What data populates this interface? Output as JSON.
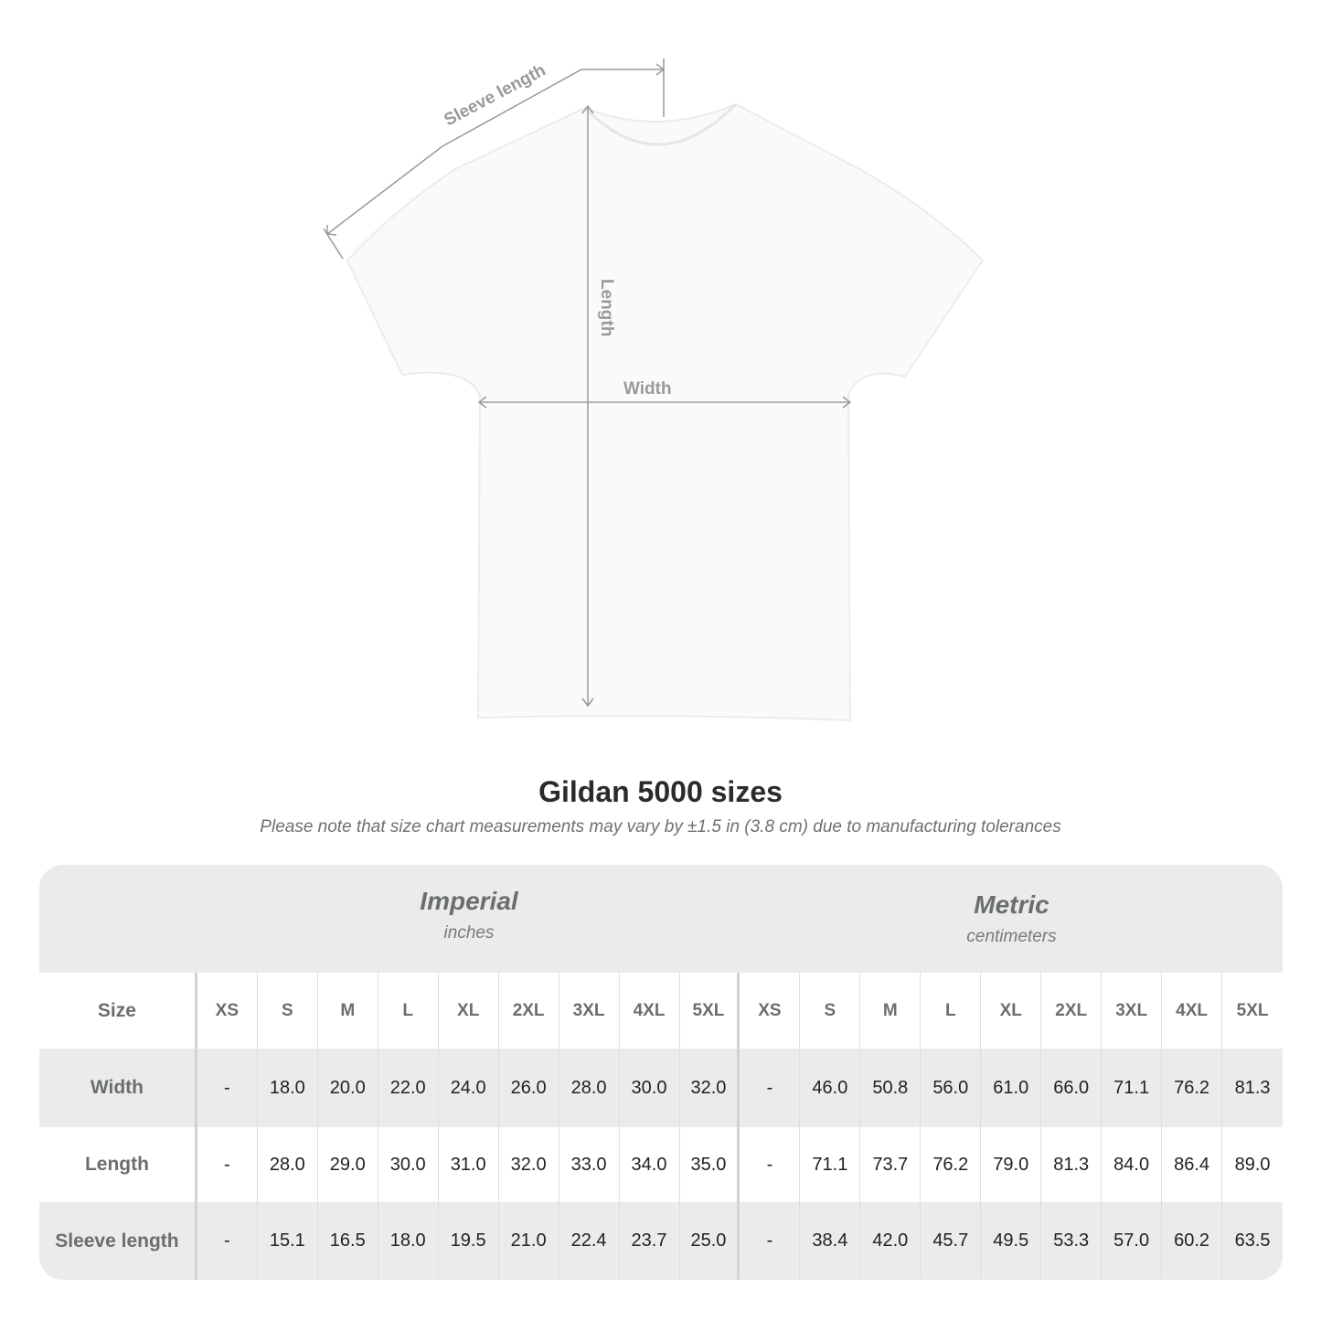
{
  "diagram": {
    "labels": {
      "sleeve": "Sleeve length",
      "length": "Length",
      "width": "Width"
    },
    "garment_color": "#ffffff",
    "line_color": "#999999"
  },
  "title": "Gildan 5000 sizes",
  "note": "Please note that size chart measurements may vary by ±1.5 in (3.8 cm) due to manufacturing tolerances",
  "table": {
    "imperial": {
      "system": "Imperial",
      "unit": "inches"
    },
    "metric": {
      "system": "Metric",
      "unit": "centimeters"
    },
    "size_label": "Size",
    "sizes": [
      "XS",
      "S",
      "M",
      "L",
      "XL",
      "2XL",
      "3XL",
      "4XL",
      "5XL"
    ],
    "rows": [
      {
        "label": "Width",
        "imperial": [
          "-",
          "18.0",
          "20.0",
          "22.0",
          "24.0",
          "26.0",
          "28.0",
          "30.0",
          "32.0"
        ],
        "metric": [
          "-",
          "46.0",
          "50.8",
          "56.0",
          "61.0",
          "66.0",
          "71.1",
          "76.2",
          "81.3"
        ]
      },
      {
        "label": "Length",
        "imperial": [
          "-",
          "28.0",
          "29.0",
          "30.0",
          "31.0",
          "32.0",
          "33.0",
          "34.0",
          "35.0"
        ],
        "metric": [
          "-",
          "71.1",
          "73.7",
          "76.2",
          "79.0",
          "81.3",
          "84.0",
          "86.4",
          "89.0"
        ]
      },
      {
        "label": "Sleeve length",
        "imperial": [
          "-",
          "15.1",
          "16.5",
          "18.0",
          "19.5",
          "21.0",
          "22.4",
          "23.7",
          "25.0"
        ],
        "metric": [
          "-",
          "38.4",
          "42.0",
          "45.7",
          "49.5",
          "53.3",
          "57.0",
          "60.2",
          "63.5"
        ]
      }
    ]
  }
}
